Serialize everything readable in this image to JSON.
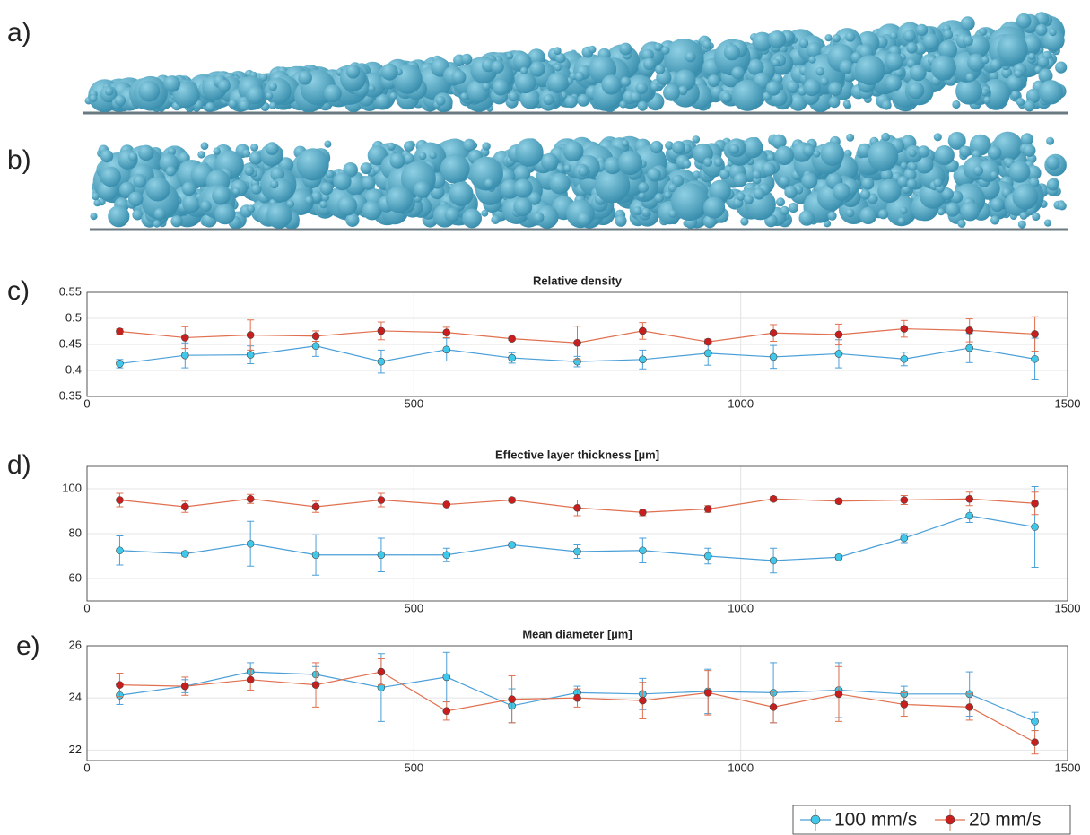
{
  "panel_labels": [
    "a)",
    "b)",
    "c)",
    "d)",
    "e)"
  ],
  "chart_data": [
    {
      "type": "errorline",
      "title": "Relative density",
      "x": [
        50,
        150,
        250,
        350,
        450,
        550,
        650,
        750,
        850,
        950,
        1050,
        1150,
        1250,
        1350,
        1450
      ],
      "xlim": [
        0,
        1500
      ],
      "xticks": [
        0,
        500,
        1000,
        1500
      ],
      "ylim": [
        0.35,
        0.55
      ],
      "yticks": [
        0.35,
        0.4,
        0.45,
        0.5,
        0.55
      ],
      "grid": true,
      "series": [
        {
          "name": "100 mm/s",
          "color": "#3fc8ea",
          "line_color": "#4a9fd8",
          "values": [
            0.413,
            0.429,
            0.43,
            0.447,
            0.417,
            0.44,
            0.424,
            0.417,
            0.421,
            0.433,
            0.426,
            0.432,
            0.422,
            0.443,
            0.422
          ],
          "errors": [
            0.008,
            0.024,
            0.017,
            0.02,
            0.022,
            0.022,
            0.01,
            0.01,
            0.018,
            0.023,
            0.022,
            0.027,
            0.013,
            0.028,
            0.04
          ]
        },
        {
          "name": "20 mm/s",
          "color": "#c81e1e",
          "line_color": "#e0704f",
          "values": [
            0.475,
            0.463,
            0.468,
            0.466,
            0.476,
            0.473,
            0.461,
            0.453,
            0.476,
            0.455,
            0.472,
            0.469,
            0.48,
            0.477,
            0.47
          ],
          "errors": [
            0.005,
            0.021,
            0.029,
            0.01,
            0.017,
            0.01,
            0.003,
            0.032,
            0.016,
            0.005,
            0.016,
            0.02,
            0.016,
            0.022,
            0.033
          ]
        }
      ]
    },
    {
      "type": "errorline",
      "title": "Effective layer thickness [µm]",
      "x": [
        50,
        150,
        250,
        350,
        450,
        550,
        650,
        750,
        850,
        950,
        1050,
        1150,
        1250,
        1350,
        1450
      ],
      "xlim": [
        0,
        1500
      ],
      "xticks": [
        0,
        500,
        1000,
        1500
      ],
      "ylim": [
        50,
        110
      ],
      "yticks": [
        60,
        80,
        100
      ],
      "grid": true,
      "series": [
        {
          "name": "100 mm/s",
          "color": "#3fc8ea",
          "line_color": "#4a9fd8",
          "values": [
            72.5,
            71,
            75.5,
            70.5,
            70.5,
            70.5,
            75,
            72,
            72.5,
            70,
            68,
            69.5,
            78,
            88,
            83
          ],
          "errors": [
            6.5,
            1,
            10,
            9,
            7.5,
            3,
            1,
            3,
            5.5,
            3.5,
            5.5,
            1,
            2,
            3,
            18
          ]
        },
        {
          "name": "20 mm/s",
          "color": "#c81e1e",
          "line_color": "#e0704f",
          "values": [
            95,
            92,
            95.5,
            92,
            95,
            93,
            95,
            91.5,
            89.5,
            91,
            95.5,
            94.5,
            95,
            95.5,
            93.5
          ],
          "errors": [
            3,
            2.5,
            2,
            2.5,
            3,
            2,
            1,
            3.5,
            1.5,
            1.5,
            1,
            1,
            2,
            3,
            5
          ]
        }
      ]
    },
    {
      "type": "errorline",
      "title": "Mean diameter [µm]",
      "x": [
        50,
        150,
        250,
        350,
        450,
        550,
        650,
        750,
        850,
        950,
        1050,
        1150,
        1250,
        1350,
        1450
      ],
      "xlim": [
        0,
        1500
      ],
      "xticks": [
        0,
        500,
        1000,
        1500
      ],
      "ylim": [
        21.6,
        26
      ],
      "yticks": [
        22,
        24,
        26
      ],
      "grid": true,
      "legend": "below right",
      "series": [
        {
          "name": "100 mm/s",
          "color": "#3fc8ea",
          "line_color": "#4a9fd8",
          "values": [
            24.1,
            24.45,
            25,
            24.9,
            24.4,
            24.8,
            23.7,
            24.2,
            24.15,
            24.25,
            24.2,
            24.3,
            24.15,
            24.15,
            23.1
          ],
          "errors": [
            0.35,
            0.25,
            0.35,
            0.3,
            1.3,
            0.95,
            0.65,
            0.25,
            0.6,
            0.85,
            1.15,
            1.05,
            0.3,
            0.85,
            0.35
          ]
        },
        {
          "name": "20 mm/s",
          "color": "#c81e1e",
          "line_color": "#e0704f",
          "values": [
            24.5,
            24.45,
            24.7,
            24.5,
            25,
            23.5,
            23.95,
            24,
            23.9,
            24.2,
            23.65,
            24.15,
            23.75,
            23.65,
            22.3
          ],
          "errors": [
            0.45,
            0.35,
            0.4,
            0.85,
            0.5,
            0.35,
            0.9,
            0.35,
            0.7,
            0.85,
            0.6,
            1.05,
            0.45,
            0.5,
            0.45
          ]
        }
      ]
    }
  ]
}
